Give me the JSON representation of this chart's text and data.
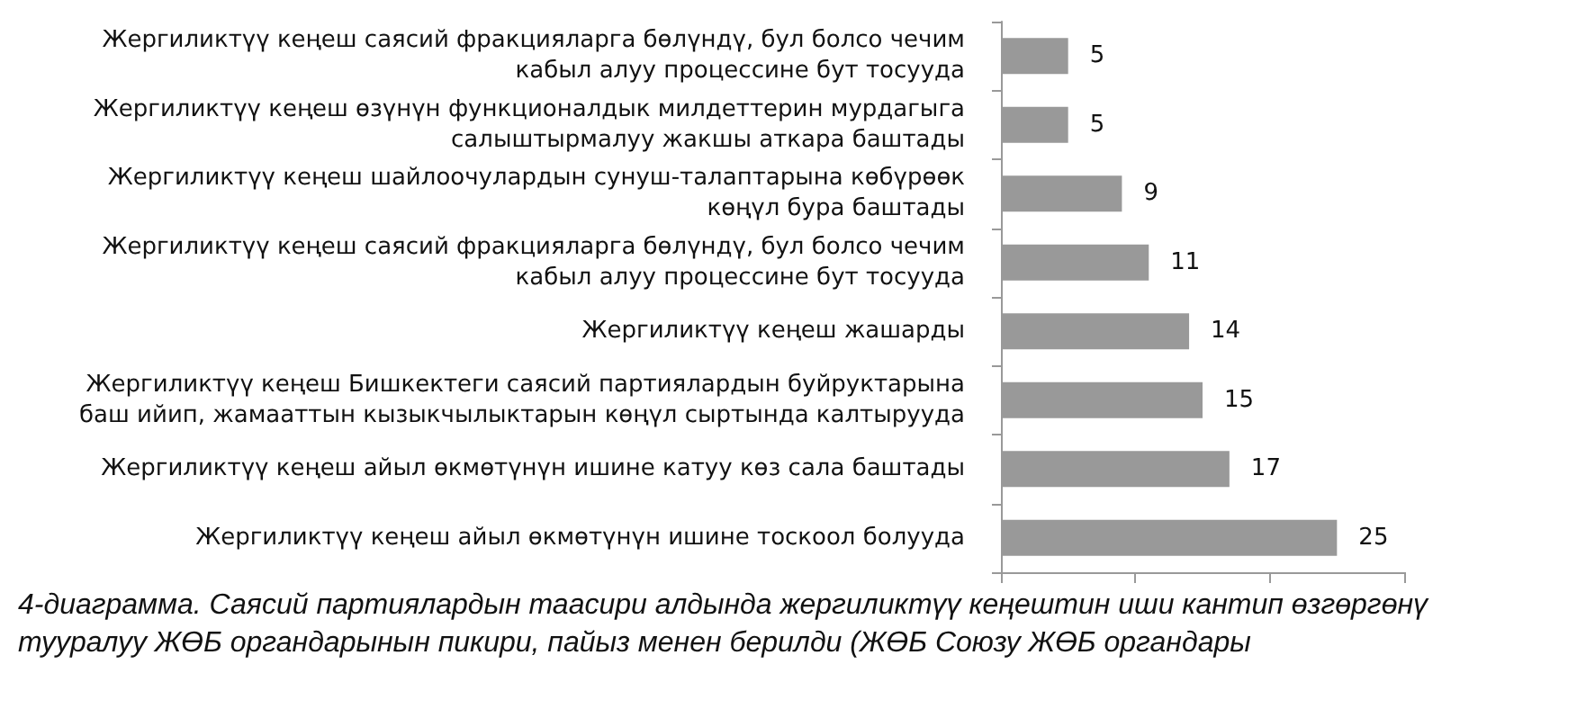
{
  "chart_data": {
    "type": "bar",
    "orientation": "horizontal",
    "categories": [
      "Жергиликтүү кеңеш саясий фракцияларга бөлүндү, бул болсо чечим\nкабыл алуу процессине бут тосууда",
      "Жергиликтүү кеңеш өзүнүн функционалдык милдеттерин мурдагыга\nсалыштырмалуу жакшы аткара баштады",
      "Жергиликтүү кеңеш шайлоочулардын сунуш-талаптарына көбүрөөк\nкөңүл бура баштады",
      "Жергиликтүү кеңеш саясий фракцияларга бөлүндү, бул болсо чечим\nкабыл алуу процессине бут тосууда",
      "Жергиликтүү кеңеш жашарды",
      "Жергиликтүү кеңеш Бишкектеги саясий партиялардын буйруктарына\nбаш ийип, жамааттын кызыкчылыктарын көңүл сыртында калтырууда",
      "Жергиликтүү кеңеш айыл өкмөтүнүн ишине катуу көз сала баштады",
      "Жергиликтүү кеңеш айыл өкмөтүнүн ишине тоскоол болууда"
    ],
    "values": [
      5,
      5,
      9,
      11,
      14,
      15,
      17,
      25
    ],
    "color": "#999999",
    "data_labels": true,
    "xlim": [
      0,
      30
    ],
    "xticks": [
      {
        "value": 0,
        "label": null
      },
      {
        "value": 10,
        "label": null
      },
      {
        "value": 20,
        "label": null
      },
      {
        "value": 30,
        "label": null
      }
    ],
    "tick_labels": "y",
    "grid": false,
    "annotations": [
      "4-диаграмма. Саясий партиялардын таасири алдында жергиликтүү кеңештин иши кантип өзгөргөнү тууралуу ЖӨБ органдарынын пикири, пайыз менен берилди (ЖӨБ Союзу ЖӨБ органдары"
    ]
  }
}
